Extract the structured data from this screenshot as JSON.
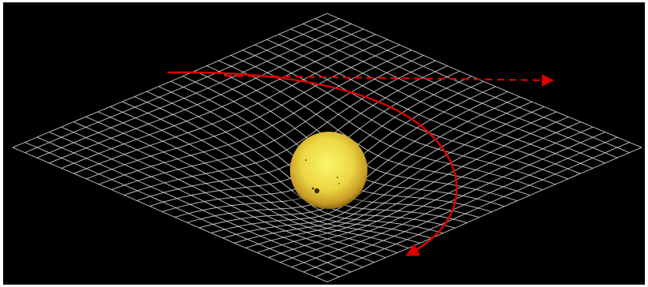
{
  "diagram": {
    "colors": {
      "frame": "#ffffff",
      "background": "#000000",
      "grid": "#d8d8d8",
      "deflected_path": "#e00000",
      "straight_path": "#e00000",
      "sun_core": "#f7f25a",
      "sun_mid": "#e9cc3e",
      "sun_edge": "#8a6a10"
    },
    "elements": {
      "grid": "spacetime-grid",
      "mass": "sun",
      "paths": [
        "deflected-trajectory",
        "undeflected-trajectory"
      ]
    }
  }
}
